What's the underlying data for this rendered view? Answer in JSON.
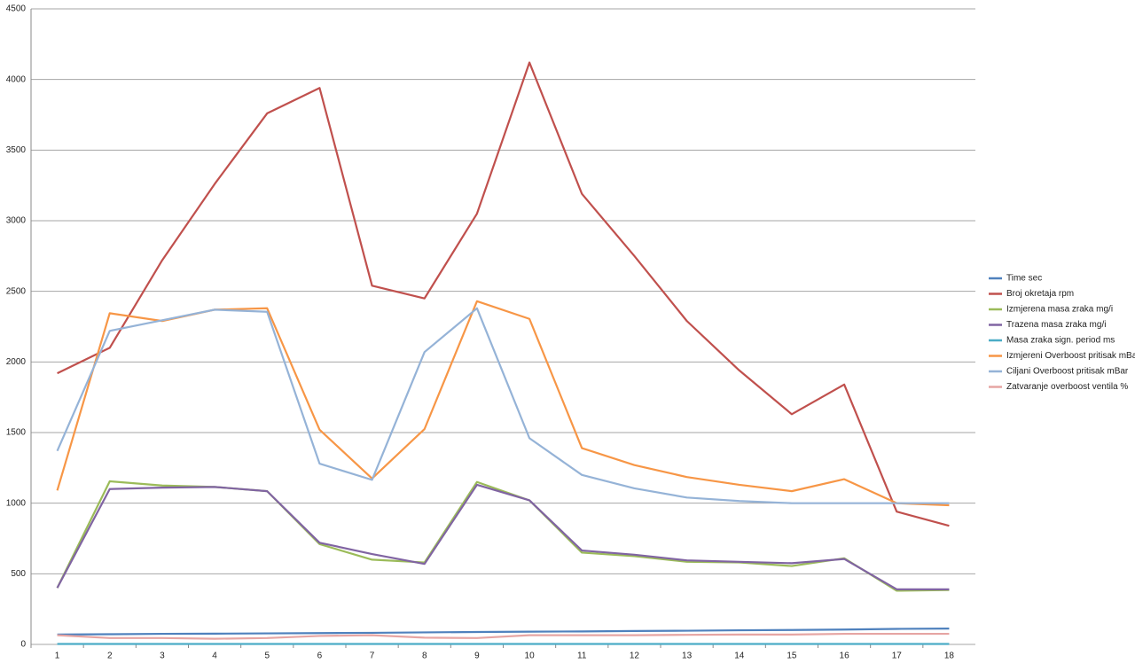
{
  "chart_data": {
    "type": "line",
    "categories": [
      "1",
      "2",
      "3",
      "4",
      "5",
      "6",
      "7",
      "8",
      "9",
      "10",
      "11",
      "12",
      "13",
      "14",
      "15",
      "16",
      "17",
      "18"
    ],
    "series": [
      {
        "name": "Time sec",
        "color": "#4f81bd",
        "values": [
          70,
          72,
          75,
          76,
          78,
          80,
          82,
          85,
          88,
          90,
          92,
          95,
          97,
          100,
          102,
          105,
          110,
          112
        ]
      },
      {
        "name": "Broj okretaja rpm",
        "color": "#c0504d",
        "values": [
          1920,
          2100,
          2720,
          3260,
          3760,
          3940,
          2540,
          2450,
          3050,
          4120,
          3190,
          2750,
          2290,
          1940,
          1630,
          1840,
          940,
          840
        ]
      },
      {
        "name": "Izmjerena masa zraka mg/i",
        "color": "#9bbb59",
        "values": [
          400,
          1155,
          1125,
          1115,
          1085,
          710,
          600,
          580,
          1150,
          1020,
          650,
          625,
          585,
          580,
          555,
          610,
          380,
          385
        ]
      },
      {
        "name": "Trazena masa zraka mg/i",
        "color": "#8064a2",
        "values": [
          400,
          1100,
          1110,
          1115,
          1085,
          720,
          640,
          570,
          1130,
          1020,
          665,
          635,
          595,
          585,
          575,
          605,
          390,
          390
        ]
      },
      {
        "name": "Masa zraka sign. period ms",
        "color": "#4bacc6",
        "values": [
          3,
          3,
          3,
          3,
          3,
          3,
          3,
          3,
          3,
          3,
          3,
          3,
          3,
          3,
          3,
          3,
          3,
          3
        ]
      },
      {
        "name": "Izmjereni Overboost pritisak mBar",
        "color": "#f79646",
        "values": [
          1090,
          2345,
          2290,
          2370,
          2380,
          1520,
          1175,
          1525,
          2430,
          2305,
          1390,
          1270,
          1185,
          1130,
          1085,
          1170,
          1000,
          985
        ]
      },
      {
        "name": "Ciljani Overboost pritisak mBar",
        "color": "#95b3d7",
        "values": [
          1370,
          2220,
          2295,
          2370,
          2355,
          1280,
          1165,
          2070,
          2380,
          1460,
          1200,
          1105,
          1040,
          1015,
          1000,
          1000,
          1000,
          1000
        ]
      },
      {
        "name": "Zatvaranje overboost ventila %",
        "color": "#e6a5a3",
        "values": [
          65,
          45,
          45,
          40,
          45,
          60,
          65,
          48,
          45,
          65,
          65,
          65,
          68,
          70,
          70,
          75,
          75,
          75
        ]
      }
    ],
    "ylim": [
      0,
      4500
    ],
    "yticks": [
      0,
      500,
      1000,
      1500,
      2000,
      2500,
      3000,
      3500,
      4000,
      4500
    ],
    "grid": true,
    "legend": "right"
  }
}
